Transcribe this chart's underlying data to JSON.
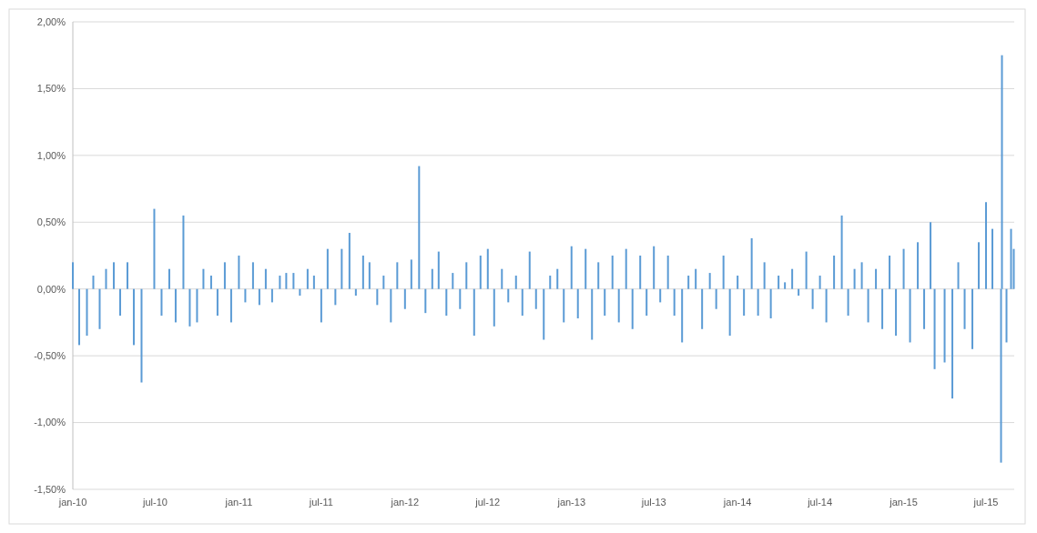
{
  "chart_data": {
    "type": "bar",
    "color": "#5b9bd5",
    "grid": "y",
    "x": [
      "2010-01-01",
      "2010-01-15",
      "2010-02-01",
      "2010-02-15",
      "2010-03-01",
      "2010-03-15",
      "2010-04-01",
      "2010-04-15",
      "2010-05-01",
      "2010-05-15",
      "2010-06-01",
      "2010-06-29",
      "2010-07-15",
      "2010-08-01",
      "2010-08-15",
      "2010-09-01",
      "2010-09-15",
      "2010-10-01",
      "2010-10-15",
      "2010-11-01",
      "2010-11-15",
      "2010-12-01",
      "2010-12-15",
      "2011-01-01",
      "2011-01-15",
      "2011-02-01",
      "2011-02-15",
      "2011-03-01",
      "2011-03-15",
      "2011-04-01",
      "2011-04-15",
      "2011-05-01",
      "2011-05-15",
      "2011-06-01",
      "2011-06-15",
      "2011-07-01",
      "2011-07-15",
      "2011-08-01",
      "2011-08-15",
      "2011-09-01",
      "2011-09-15",
      "2011-10-01",
      "2011-10-15",
      "2011-11-01",
      "2011-11-15",
      "2011-12-01",
      "2011-12-15",
      "2012-01-01",
      "2012-01-15",
      "2012-02-01",
      "2012-02-15",
      "2012-03-01",
      "2012-03-15",
      "2012-04-01",
      "2012-04-15",
      "2012-05-01",
      "2012-05-15",
      "2012-06-01",
      "2012-06-15",
      "2012-07-01",
      "2012-07-15",
      "2012-08-01",
      "2012-08-15",
      "2012-09-01",
      "2012-09-15",
      "2012-10-01",
      "2012-10-15",
      "2012-11-01",
      "2012-11-15",
      "2012-12-01",
      "2012-12-15",
      "2013-01-01",
      "2013-01-15",
      "2013-02-01",
      "2013-02-15",
      "2013-03-01",
      "2013-03-15",
      "2013-04-01",
      "2013-04-15",
      "2013-05-01",
      "2013-05-15",
      "2013-06-01",
      "2013-06-15",
      "2013-07-01",
      "2013-07-15",
      "2013-08-01",
      "2013-08-15",
      "2013-09-01",
      "2013-09-15",
      "2013-10-01",
      "2013-10-15",
      "2013-11-01",
      "2013-11-15",
      "2013-12-01",
      "2013-12-15",
      "2014-01-01",
      "2014-01-15",
      "2014-02-01",
      "2014-02-15",
      "2014-03-01",
      "2014-03-15",
      "2014-04-01",
      "2014-04-15",
      "2014-05-01",
      "2014-05-15",
      "2014-06-01",
      "2014-06-15",
      "2014-07-01",
      "2014-07-15",
      "2014-08-01",
      "2014-08-18",
      "2014-09-01",
      "2014-09-15",
      "2014-10-01",
      "2014-10-15",
      "2014-11-01",
      "2014-11-15",
      "2014-12-01",
      "2014-12-15",
      "2015-01-01",
      "2015-01-15",
      "2015-02-01",
      "2015-02-15",
      "2015-03-01",
      "2015-03-10",
      "2015-04-01",
      "2015-04-18",
      "2015-05-01",
      "2015-05-15",
      "2015-06-01",
      "2015-06-15",
      "2015-07-01",
      "2015-07-15",
      "2015-08-03",
      "2015-08-05",
      "2015-08-15",
      "2015-08-25",
      "2015-08-31"
    ],
    "values": [
      0.2,
      -0.42,
      -0.35,
      0.1,
      -0.3,
      0.15,
      0.2,
      -0.2,
      0.2,
      -0.42,
      -0.7,
      0.6,
      -0.2,
      0.15,
      -0.25,
      0.55,
      -0.28,
      -0.25,
      0.15,
      0.1,
      -0.2,
      0.2,
      -0.25,
      0.25,
      -0.1,
      0.2,
      -0.12,
      0.15,
      -0.1,
      0.1,
      0.12,
      0.12,
      -0.05,
      0.15,
      0.1,
      -0.25,
      0.3,
      -0.12,
      0.3,
      0.42,
      -0.05,
      0.25,
      0.2,
      -0.12,
      0.1,
      -0.25,
      0.2,
      -0.15,
      0.22,
      0.92,
      -0.18,
      0.15,
      0.28,
      -0.2,
      0.12,
      -0.15,
      0.2,
      -0.35,
      0.25,
      0.3,
      -0.28,
      0.15,
      -0.1,
      0.1,
      -0.2,
      0.28,
      -0.15,
      -0.38,
      0.1,
      0.15,
      -0.25,
      0.32,
      -0.22,
      0.3,
      -0.38,
      0.2,
      -0.2,
      0.25,
      -0.25,
      0.3,
      -0.3,
      0.25,
      -0.2,
      0.32,
      -0.1,
      0.25,
      -0.2,
      -0.4,
      0.1,
      0.15,
      -0.3,
      0.12,
      -0.15,
      0.25,
      -0.35,
      0.1,
      -0.2,
      0.38,
      -0.2,
      0.2,
      -0.22,
      0.1,
      0.05,
      0.15,
      -0.05,
      0.28,
      -0.15,
      0.1,
      -0.25,
      0.25,
      0.55,
      -0.2,
      0.15,
      0.2,
      -0.25,
      0.15,
      -0.3,
      0.25,
      -0.35,
      0.3,
      -0.4,
      0.35,
      -0.3,
      0.5,
      -0.6,
      -0.55,
      -0.82,
      0.2,
      -0.3,
      -0.45,
      0.35,
      0.65,
      0.45,
      -1.3,
      1.75,
      -0.4,
      0.45,
      0.3
    ],
    "xlim": [
      "2010-01-01",
      "2015-09-01"
    ],
    "xticks": [
      {
        "value": "2010-01-01",
        "label": "jan-10"
      },
      {
        "value": "2010-07-01",
        "label": "jul-10"
      },
      {
        "value": "2011-01-01",
        "label": "jan-11"
      },
      {
        "value": "2011-07-01",
        "label": "jul-11"
      },
      {
        "value": "2012-01-01",
        "label": "jan-12"
      },
      {
        "value": "2012-07-01",
        "label": "jul-12"
      },
      {
        "value": "2013-01-01",
        "label": "jan-13"
      },
      {
        "value": "2013-07-01",
        "label": "jul-13"
      },
      {
        "value": "2014-01-01",
        "label": "jan-14"
      },
      {
        "value": "2014-07-01",
        "label": "jul-14"
      },
      {
        "value": "2015-01-01",
        "label": "jan-15"
      },
      {
        "value": "2015-07-01",
        "label": "jul-15"
      }
    ],
    "ylim": [
      -1.5,
      2
    ],
    "yticks": [
      {
        "value": -1.5,
        "label": "-1,50%"
      },
      {
        "value": -1,
        "label": "-1,00%"
      },
      {
        "value": -0.5,
        "label": "-0,50%"
      },
      {
        "value": 0,
        "label": "0,00%"
      },
      {
        "value": 0.5,
        "label": "0,50%"
      },
      {
        "value": 1,
        "label": "1,00%"
      },
      {
        "value": 1.5,
        "label": "1,50%"
      },
      {
        "value": 2,
        "label": "2,00%"
      }
    ]
  }
}
